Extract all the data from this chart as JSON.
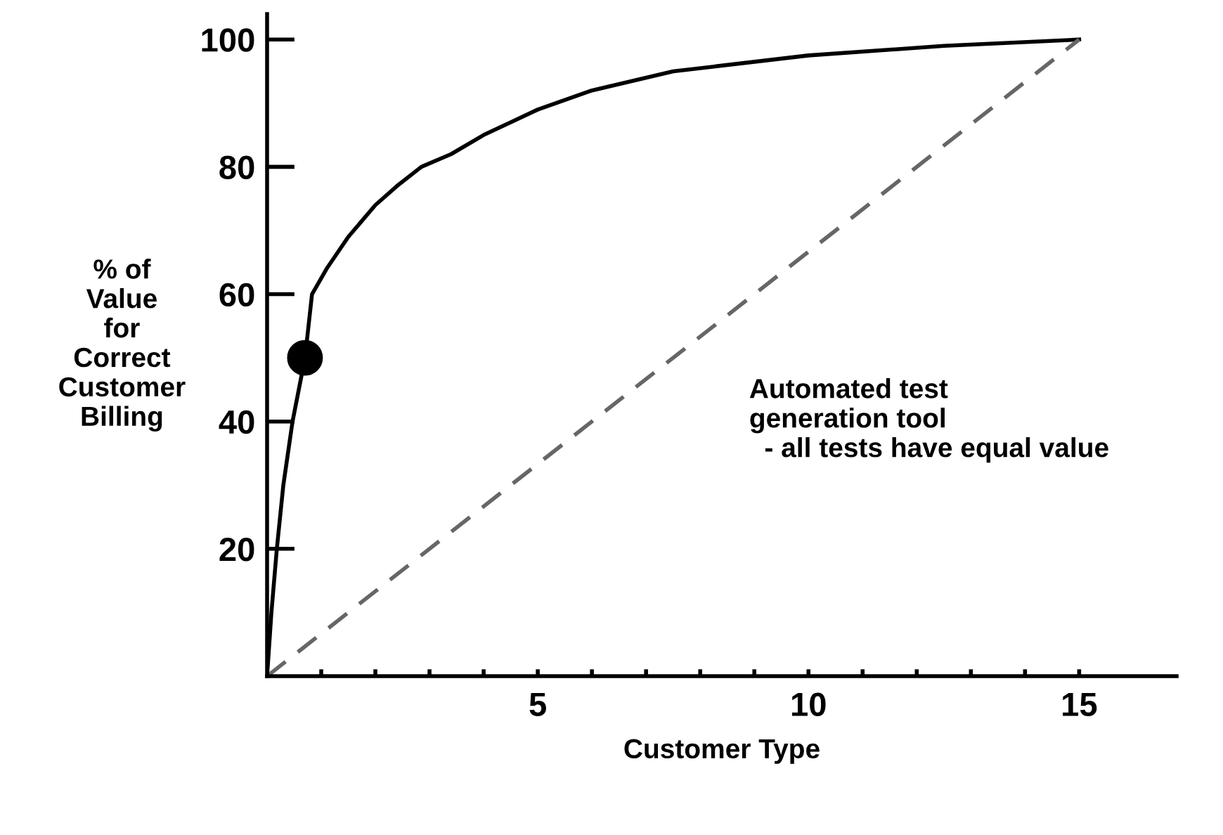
{
  "chart_data": {
    "type": "line",
    "xlabel": "Customer Type",
    "ylabel": "% of\nValue\nfor\nCorrect\nCustomer\nBilling",
    "xlim": [
      0,
      16.8
    ],
    "ylim": [
      0,
      104
    ],
    "xticks": [
      {
        "value": 1,
        "label": null
      },
      {
        "value": 2,
        "label": null
      },
      {
        "value": 3,
        "label": null
      },
      {
        "value": 4,
        "label": null
      },
      5,
      {
        "value": 6,
        "label": null
      },
      {
        "value": 7,
        "label": null
      },
      {
        "value": 8,
        "label": null
      },
      {
        "value": 9,
        "label": null
      },
      10,
      {
        "value": 11,
        "label": null
      },
      {
        "value": 12,
        "label": null
      },
      {
        "value": 13,
        "label": null
      },
      {
        "value": 14,
        "label": null
      },
      15
    ],
    "yticks": [
      20,
      40,
      60,
      80,
      100
    ],
    "grid": false,
    "legend": false,
    "series": [
      {
        "color": "#000000",
        "line_style": "solid",
        "marker": "none",
        "x": [
          0,
          0.08,
          0.18,
          0.3,
          0.47,
          0.7,
          0.83,
          1.1,
          1.5,
          2,
          2.4,
          2.85,
          3.4,
          4,
          4.5,
          5,
          6,
          7.5,
          10,
          12.5,
          15
        ],
        "values": [
          0,
          10,
          20,
          30,
          40,
          50,
          60,
          64,
          69,
          74,
          77,
          80,
          82,
          85,
          87,
          89,
          92,
          95,
          97.5,
          99,
          100
        ]
      },
      {
        "type": "line",
        "color": "#666666",
        "line_style": "dashed",
        "marker": "none",
        "x": [
          0,
          15
        ],
        "values": [
          0,
          100
        ]
      },
      {
        "type": "scatter",
        "color": "#000000",
        "marker": "circle",
        "x": [
          0.7
        ],
        "values": [
          50
        ]
      }
    ],
    "annotations": [
      "Automated test\ngeneration tool\n  - all tests have equal value"
    ]
  }
}
